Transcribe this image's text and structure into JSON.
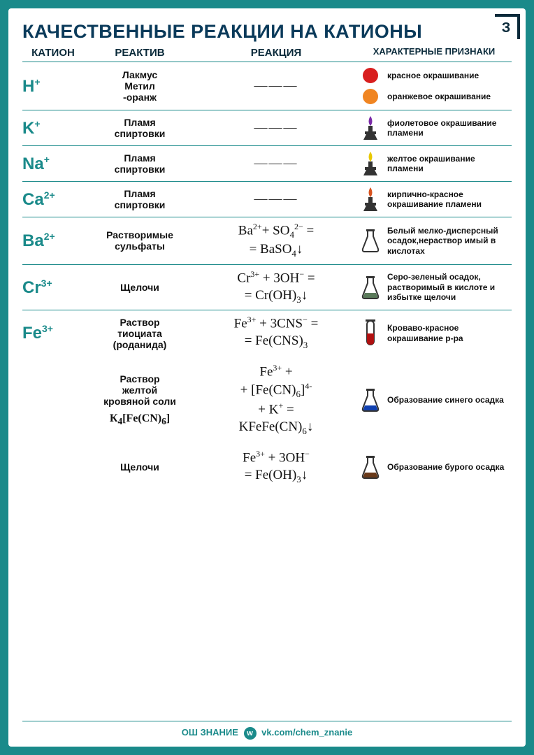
{
  "corner_mark": "З",
  "title": "КАЧЕСТВЕННЫЕ РЕАКЦИИ НА КАТИОНЫ",
  "headers": {
    "cation": "КАТИОН",
    "reagent": "РЕАКТИВ",
    "reaction": "РЕАКЦИЯ",
    "signs": "ХАРАКТЕРНЫЕ ПРИЗНАКИ"
  },
  "colors": {
    "border": "#1a8a8a",
    "title": "#0a3a5a",
    "bg": "#1a8a8a",
    "card": "#ffffff"
  },
  "rows": [
    {
      "cation_html": "H<sup>+</sup>",
      "reagents": [
        "Лакмус",
        "Метил\n-оранж"
      ],
      "reaction_dash": "———",
      "signs": [
        {
          "icon": "circle",
          "color": "#d81e1e",
          "text": "красное окрашивание"
        },
        {
          "icon": "circle",
          "color": "#f08522",
          "text": "оранжевое окрашивание"
        }
      ]
    },
    {
      "cation_html": "K<sup>+</sup>",
      "reagents": [
        "Пламя\nспиртовки"
      ],
      "reaction_dash": "———",
      "signs": [
        {
          "icon": "burner",
          "color": "#7a2aa8",
          "text": "фиолетовое окрашивание пламени"
        }
      ]
    },
    {
      "cation_html": "Na<sup>+</sup>",
      "reagents": [
        "Пламя\nспиртовки"
      ],
      "reaction_dash": "———",
      "signs": [
        {
          "icon": "burner",
          "color": "#e8c800",
          "text": "желтое окрашивание пламени"
        }
      ]
    },
    {
      "cation_html": "Ca<sup>2+</sup>",
      "reagents": [
        "Пламя\nспиртовки"
      ],
      "reaction_dash": "———",
      "signs": [
        {
          "icon": "burner",
          "color": "#d8521e",
          "text": "кирпично-красное окрашивание пламени"
        }
      ]
    },
    {
      "cation_html": "Ba<sup>2+</sup>",
      "reagents": [
        "Растворимые\nсульфаты"
      ],
      "reaction_html": "Ba<sup>2+</sup>+ SO<sub>4</sub><sup>2−</sup> =<br>= BaSO<sub>4</sub>↓",
      "signs": [
        {
          "icon": "flask",
          "color": "#ffffff",
          "text": "Белый мелко-дисперсный осадок,нераствор имый в кислотах"
        }
      ]
    },
    {
      "cation_html": "Cr<sup>3+</sup>",
      "reagents": [
        "Щелочи"
      ],
      "reaction_html": "Cr<sup>3+</sup> + 3OH<sup>−</sup> =<br>= Cr(OH)<sub>3</sub>↓",
      "signs": [
        {
          "icon": "flask",
          "color": "#5a7a5a",
          "text": "Серо-зеленый осадок, растворимый в кислоте и избытке щелочи"
        }
      ]
    },
    {
      "cation_html": "Fe<sup>3+</sup>",
      "reagents": [
        "Раствор\nтиоциата\n(роданида)"
      ],
      "reaction_html": "Fe<sup>3+</sup> + 3CNS<sup>−</sup> =<br>= Fe(CNS)<sub>3</sub>",
      "signs": [
        {
          "icon": "tube",
          "color": "#b01010",
          "text": "Кроваво-красное окрашивание р-ра"
        }
      ],
      "subrows": [
        {
          "reagents": [
            "Раствор\nжелтой\nкровяной соли"
          ],
          "extra_formula": "К<sub>4</sub>[Fe(CN)<sub>6</sub>]",
          "reaction_html": "Fe<sup>3+</sup> +<br>+ [Fe(CN)<sub>6</sub>]<sup>4-</sup><br>+ K<sup>+</sup> =<br>KFeFe(CN)<sub>6</sub>↓",
          "signs": [
            {
              "icon": "flask",
              "color": "#1040b0",
              "text": "Образование синего осадка"
            }
          ]
        },
        {
          "reagents": [
            "Щелочи"
          ],
          "reaction_html": "Fe<sup>3+</sup> + 3OH<sup>−</sup><br>= Fe(OH)<sub>3</sub>↓",
          "signs": [
            {
              "icon": "flask",
              "color": "#6a3a1a",
              "text": "Образование бурого осадка"
            }
          ]
        }
      ]
    }
  ],
  "footer": {
    "brand": "ОШ ЗНАНИЕ",
    "link": "vk.com/chem_znanie"
  }
}
